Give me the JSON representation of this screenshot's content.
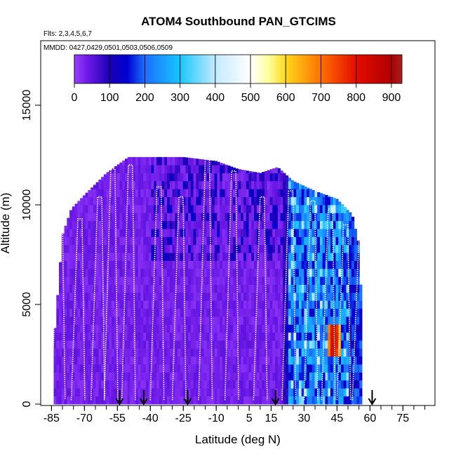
{
  "chart_data": {
    "type": "heatmap",
    "title": "ATOM4 Southbound PAN_GTCIMS",
    "flights_label": "Flts: 2,3,4,5,6,7",
    "dates_label": "MMDD: 0427,0429,0501,0503,0506,0509",
    "xlabel": "Latitude (deg N)",
    "ylabel": "Altitude (m)",
    "xlim": [
      -88,
      88
    ],
    "ylim": [
      0,
      17500
    ],
    "x_ticks": [
      -85,
      -70,
      -55,
      -40,
      -25,
      -10,
      5,
      15,
      30,
      45,
      60,
      75
    ],
    "x_tick_labels": [
      "-85",
      "-70",
      "-55",
      "-40",
      "-25",
      "-10",
      "5",
      "15",
      "30",
      "45",
      "60",
      "75"
    ],
    "x_minor_step": 5,
    "y_ticks": [
      0,
      5000,
      10000,
      15000
    ],
    "y_tick_labels": [
      "0",
      "5000",
      "10000",
      "15000"
    ],
    "colorbar": {
      "min": 0,
      "max": 930,
      "ticks": [
        0,
        100,
        200,
        300,
        400,
        500,
        600,
        700,
        800,
        900
      ],
      "tick_labels": [
        "0",
        "100",
        "200",
        "300",
        "400",
        "500",
        "600",
        "700",
        "800",
        "900"
      ],
      "stops": [
        {
          "v": 0,
          "c": "#9a40ff"
        },
        {
          "v": 40,
          "c": "#6a18e6"
        },
        {
          "v": 100,
          "c": "#1a00b4"
        },
        {
          "v": 150,
          "c": "#0000d2"
        },
        {
          "v": 200,
          "c": "#1c6eff"
        },
        {
          "v": 300,
          "c": "#16c6ff"
        },
        {
          "v": 400,
          "c": "#c4eaff"
        },
        {
          "v": 500,
          "c": "#ffffff"
        },
        {
          "v": 550,
          "c": "#ffffa0"
        },
        {
          "v": 600,
          "c": "#ffd81c"
        },
        {
          "v": 700,
          "c": "#ff7000"
        },
        {
          "v": 800,
          "c": "#e40c00"
        },
        {
          "v": 900,
          "c": "#b00000"
        },
        {
          "v": 930,
          "c": "#a82020"
        }
      ]
    },
    "data_extent": {
      "lat": [
        -84,
        56
      ],
      "top_altitude_profile": [
        [
          -84,
          3000
        ],
        [
          -80,
          8500
        ],
        [
          -76,
          9800
        ],
        [
          -70,
          10500
        ],
        [
          -60,
          11600
        ],
        [
          -50,
          12400
        ],
        [
          -40,
          12400
        ],
        [
          -25,
          12400
        ],
        [
          -10,
          12200
        ],
        [
          0,
          11800
        ],
        [
          10,
          11600
        ],
        [
          18,
          11900
        ],
        [
          25,
          11200
        ],
        [
          35,
          10700
        ],
        [
          45,
          10300
        ],
        [
          52,
          9500
        ],
        [
          55,
          8000
        ],
        [
          56,
          5500
        ],
        [
          56,
          3000
        ]
      ],
      "bottom_altitude": 0
    },
    "sonde_latitudes": [
      -54,
      -43,
      -23,
      17,
      61
    ],
    "flight_track_tops": [
      {
        "lat": -82,
        "alt": 9600
      },
      {
        "lat": -73,
        "alt": 9300
      },
      {
        "lat": -64,
        "alt": 10400
      },
      {
        "lat": -58,
        "alt": 11800
      },
      {
        "lat": -50,
        "alt": 12000
      },
      {
        "lat": -37,
        "alt": 10900
      },
      {
        "lat": -27,
        "alt": 10400
      },
      {
        "lat": -15,
        "alt": 12300
      },
      {
        "lat": -3,
        "alt": 11700
      },
      {
        "lat": 10,
        "alt": 10400
      },
      {
        "lat": 23,
        "alt": 10700
      },
      {
        "lat": 33,
        "alt": 10200
      },
      {
        "lat": 41,
        "alt": 9800
      },
      {
        "lat": 48,
        "alt": 9000
      },
      {
        "lat": 55,
        "alt": 8400
      }
    ],
    "enhanced_regions": [
      {
        "lat": [
          22,
          56
        ],
        "alt": [
          0,
          12000
        ],
        "typical_value": 230
      },
      {
        "lat": [
          40,
          46
        ],
        "alt": [
          2500,
          3500
        ],
        "typical_value": 800
      },
      {
        "lat": [
          -84,
          20
        ],
        "alt": [
          0,
          12400
        ],
        "typical_value": 30
      }
    ]
  }
}
